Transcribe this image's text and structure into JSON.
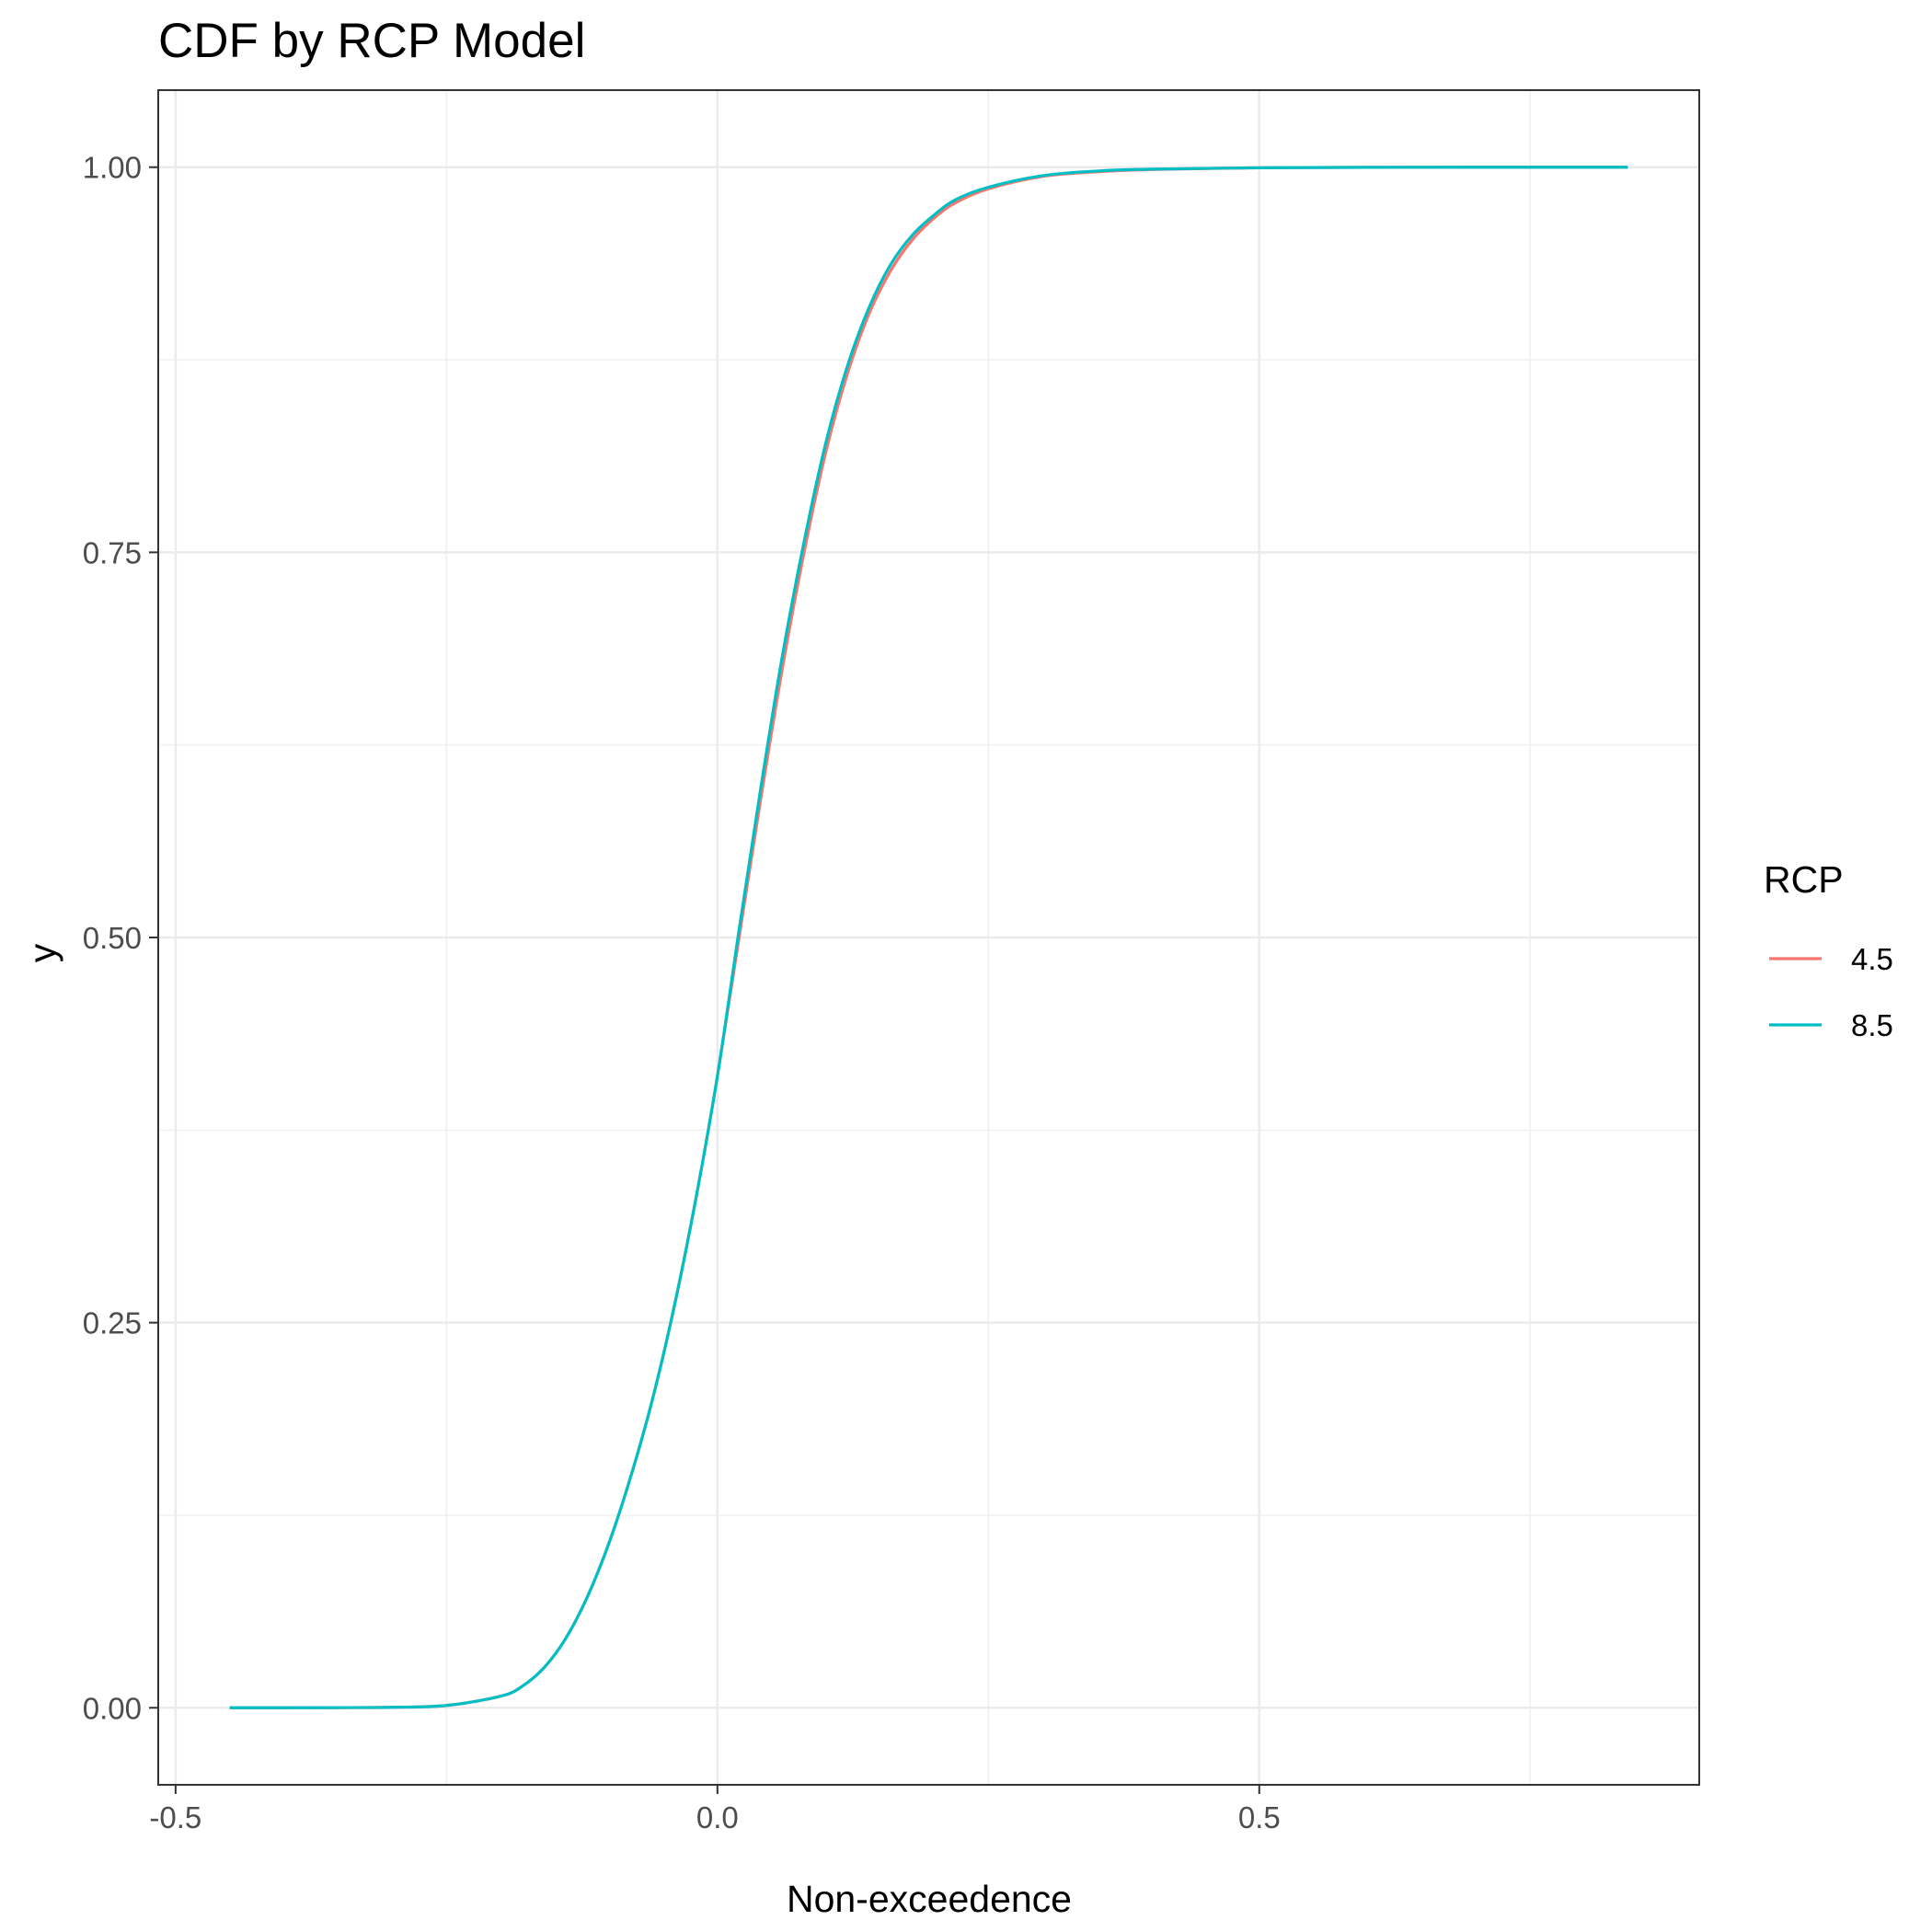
{
  "chart_data": {
    "type": "line",
    "title": "CDF by RCP Model",
    "xlabel": "Non-exceedence",
    "ylabel": "y",
    "xlim": [
      -0.516,
      0.906
    ],
    "ylim": [
      -0.05,
      1.05
    ],
    "x_ticks": [
      -0.5,
      0.0,
      0.5
    ],
    "x_tick_labels": [
      "-0.5",
      "0.0",
      "0.5"
    ],
    "y_ticks": [
      0.0,
      0.25,
      0.5,
      0.75,
      1.0
    ],
    "y_tick_labels": [
      "0.00",
      "0.25",
      "0.50",
      "0.75",
      "1.00"
    ],
    "grid": true,
    "legend": {
      "title": "RCP",
      "position": "right"
    },
    "series": [
      {
        "name": "4.5",
        "color": "#F8766D",
        "x": [
          -0.45,
          -0.4,
          -0.35,
          -0.3,
          -0.25,
          -0.2,
          -0.18,
          -0.16,
          -0.14,
          -0.12,
          -0.1,
          -0.08,
          -0.06,
          -0.04,
          -0.02,
          0.0,
          0.02,
          0.04,
          0.06,
          0.08,
          0.1,
          0.12,
          0.14,
          0.16,
          0.18,
          0.2,
          0.22,
          0.25,
          0.3,
          0.35,
          0.4,
          0.5,
          0.6,
          0.7,
          0.84
        ],
        "y": [
          0.0,
          0.0,
          0.0001,
          0.0003,
          0.0015,
          0.0075,
          0.014,
          0.026,
          0.045,
          0.072,
          0.107,
          0.15,
          0.2,
          0.26,
          0.33,
          0.41,
          0.5,
          0.59,
          0.675,
          0.75,
          0.815,
          0.866,
          0.905,
          0.933,
          0.953,
          0.967,
          0.977,
          0.986,
          0.994,
          0.997,
          0.9985,
          0.9996,
          0.9999,
          1.0,
          1.0
        ]
      },
      {
        "name": "8.5",
        "color": "#00BFC4",
        "x": [
          -0.45,
          -0.4,
          -0.35,
          -0.3,
          -0.25,
          -0.2,
          -0.18,
          -0.16,
          -0.14,
          -0.12,
          -0.1,
          -0.08,
          -0.06,
          -0.04,
          -0.02,
          0.0,
          0.02,
          0.04,
          0.06,
          0.08,
          0.1,
          0.12,
          0.14,
          0.16,
          0.18,
          0.2,
          0.22,
          0.25,
          0.3,
          0.35,
          0.4,
          0.5,
          0.6,
          0.7,
          0.84
        ],
        "y": [
          0.0,
          0.0,
          0.0001,
          0.0003,
          0.0015,
          0.0075,
          0.014,
          0.026,
          0.045,
          0.072,
          0.107,
          0.15,
          0.2,
          0.26,
          0.33,
          0.41,
          0.505,
          0.597,
          0.683,
          0.757,
          0.821,
          0.871,
          0.909,
          0.937,
          0.956,
          0.969,
          0.979,
          0.987,
          0.9945,
          0.9975,
          0.9987,
          0.9996,
          0.9999,
          1.0,
          1.0
        ]
      }
    ]
  }
}
